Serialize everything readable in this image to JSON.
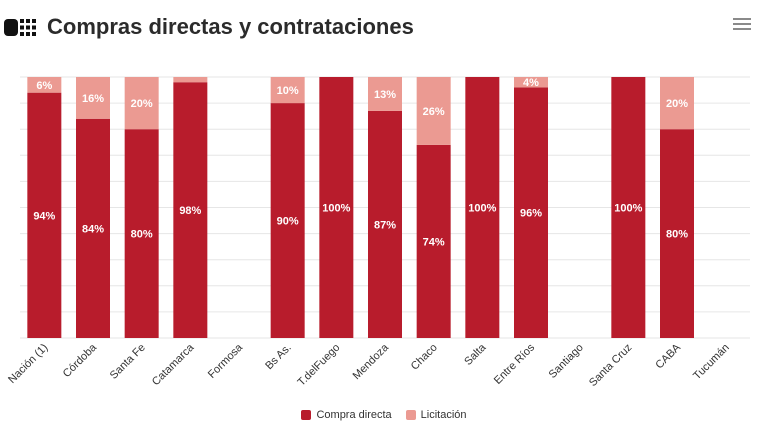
{
  "header": {
    "title": "Compras directas y contrataciones",
    "logo_icon": "grid-logo-icon",
    "menu_icon": "hamburger-menu-icon"
  },
  "colors": {
    "compra_directa": "#b81c2c",
    "licitacion": "#eb9a92",
    "grid": "#e6e6e6",
    "label_dark": "#ffffff",
    "label_light": "#ffffff"
  },
  "chart_data": {
    "type": "bar",
    "stacked": true,
    "percent": true,
    "categories": [
      "Nación (1)",
      "Córdoba",
      "Santa Fe",
      "Catamarca",
      "Formosa",
      "Bs As.",
      "T.delFuego",
      "Mendoza",
      "Chaco",
      "Salta",
      "Entre Ríos",
      "Santiago",
      "Santa Cruz",
      "CABA",
      "Tucumán"
    ],
    "series": [
      {
        "name": "Compra directa",
        "values": [
          94,
          84,
          80,
          98,
          null,
          90,
          100,
          87,
          74,
          100,
          96,
          null,
          100,
          80,
          null
        ]
      },
      {
        "name": "Licitación",
        "values": [
          6,
          16,
          20,
          2,
          null,
          10,
          0,
          13,
          26,
          0,
          4,
          null,
          0,
          20,
          null
        ]
      }
    ],
    "labels": {
      "Compra directa": [
        "94%",
        "84%",
        "80%",
        "98%",
        "",
        "90%",
        "100%",
        "87%",
        "74%",
        "100%",
        "96%",
        "",
        "100%",
        "80%",
        ""
      ],
      "Licitación": [
        "6%",
        "16%",
        "20%",
        "",
        "",
        "10%",
        "",
        "13%",
        "26%",
        "",
        "4%",
        "",
        "",
        "20%",
        ""
      ]
    },
    "ylim": [
      0,
      100
    ],
    "grid": true,
    "legend_position": "bottom-center"
  }
}
